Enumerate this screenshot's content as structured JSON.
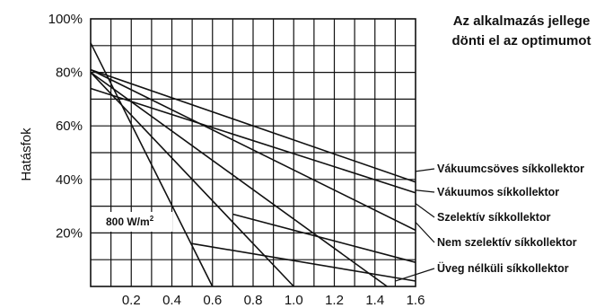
{
  "chart_data": {
    "type": "line",
    "title_lines": [
      "Az alkalmazás jellege",
      "dönti el az optimumot"
    ],
    "ylabel": "Hatásfok",
    "xlabel": "",
    "xlim": [
      0,
      1.6
    ],
    "ylim": [
      0,
      100
    ],
    "x_ticks": [
      "0.2",
      "0.4",
      "0.6",
      "0.8",
      "1.0",
      "1.2",
      "1.4",
      "1.6"
    ],
    "y_ticks": [
      "20%",
      "40%",
      "60%",
      "80%",
      "100%"
    ],
    "grid": true,
    "annotation": {
      "text": "800 W/m",
      "sup": "2"
    },
    "series": [
      {
        "name": "Vákuumcsöves síkkollektor",
        "x": [
          0,
          1.6
        ],
        "y": [
          81,
          39
        ]
      },
      {
        "name": "Vákuumos síkkollektor",
        "x": [
          0,
          1.6
        ],
        "y": [
          74,
          35
        ]
      },
      {
        "name": "Szelektív síkkollektor",
        "x": [
          0,
          1.6
        ],
        "y": [
          81,
          21
        ]
      },
      {
        "name": "Nem szelektív síkkollektor",
        "x": [
          0,
          1.0
        ],
        "y": [
          80,
          0
        ]
      },
      {
        "name": "Üveg nélküli síkkollektor",
        "x": [
          0,
          0.6
        ],
        "y": [
          91,
          0
        ]
      },
      {
        "name": "",
        "x": [
          0,
          1.46
        ],
        "y": [
          80,
          0
        ]
      },
      {
        "name": "",
        "x": [
          0.5,
          1.6
        ],
        "y": [
          16,
          2
        ]
      },
      {
        "name": "",
        "x": [
          0.7,
          1.6
        ],
        "y": [
          27,
          9
        ]
      }
    ]
  }
}
